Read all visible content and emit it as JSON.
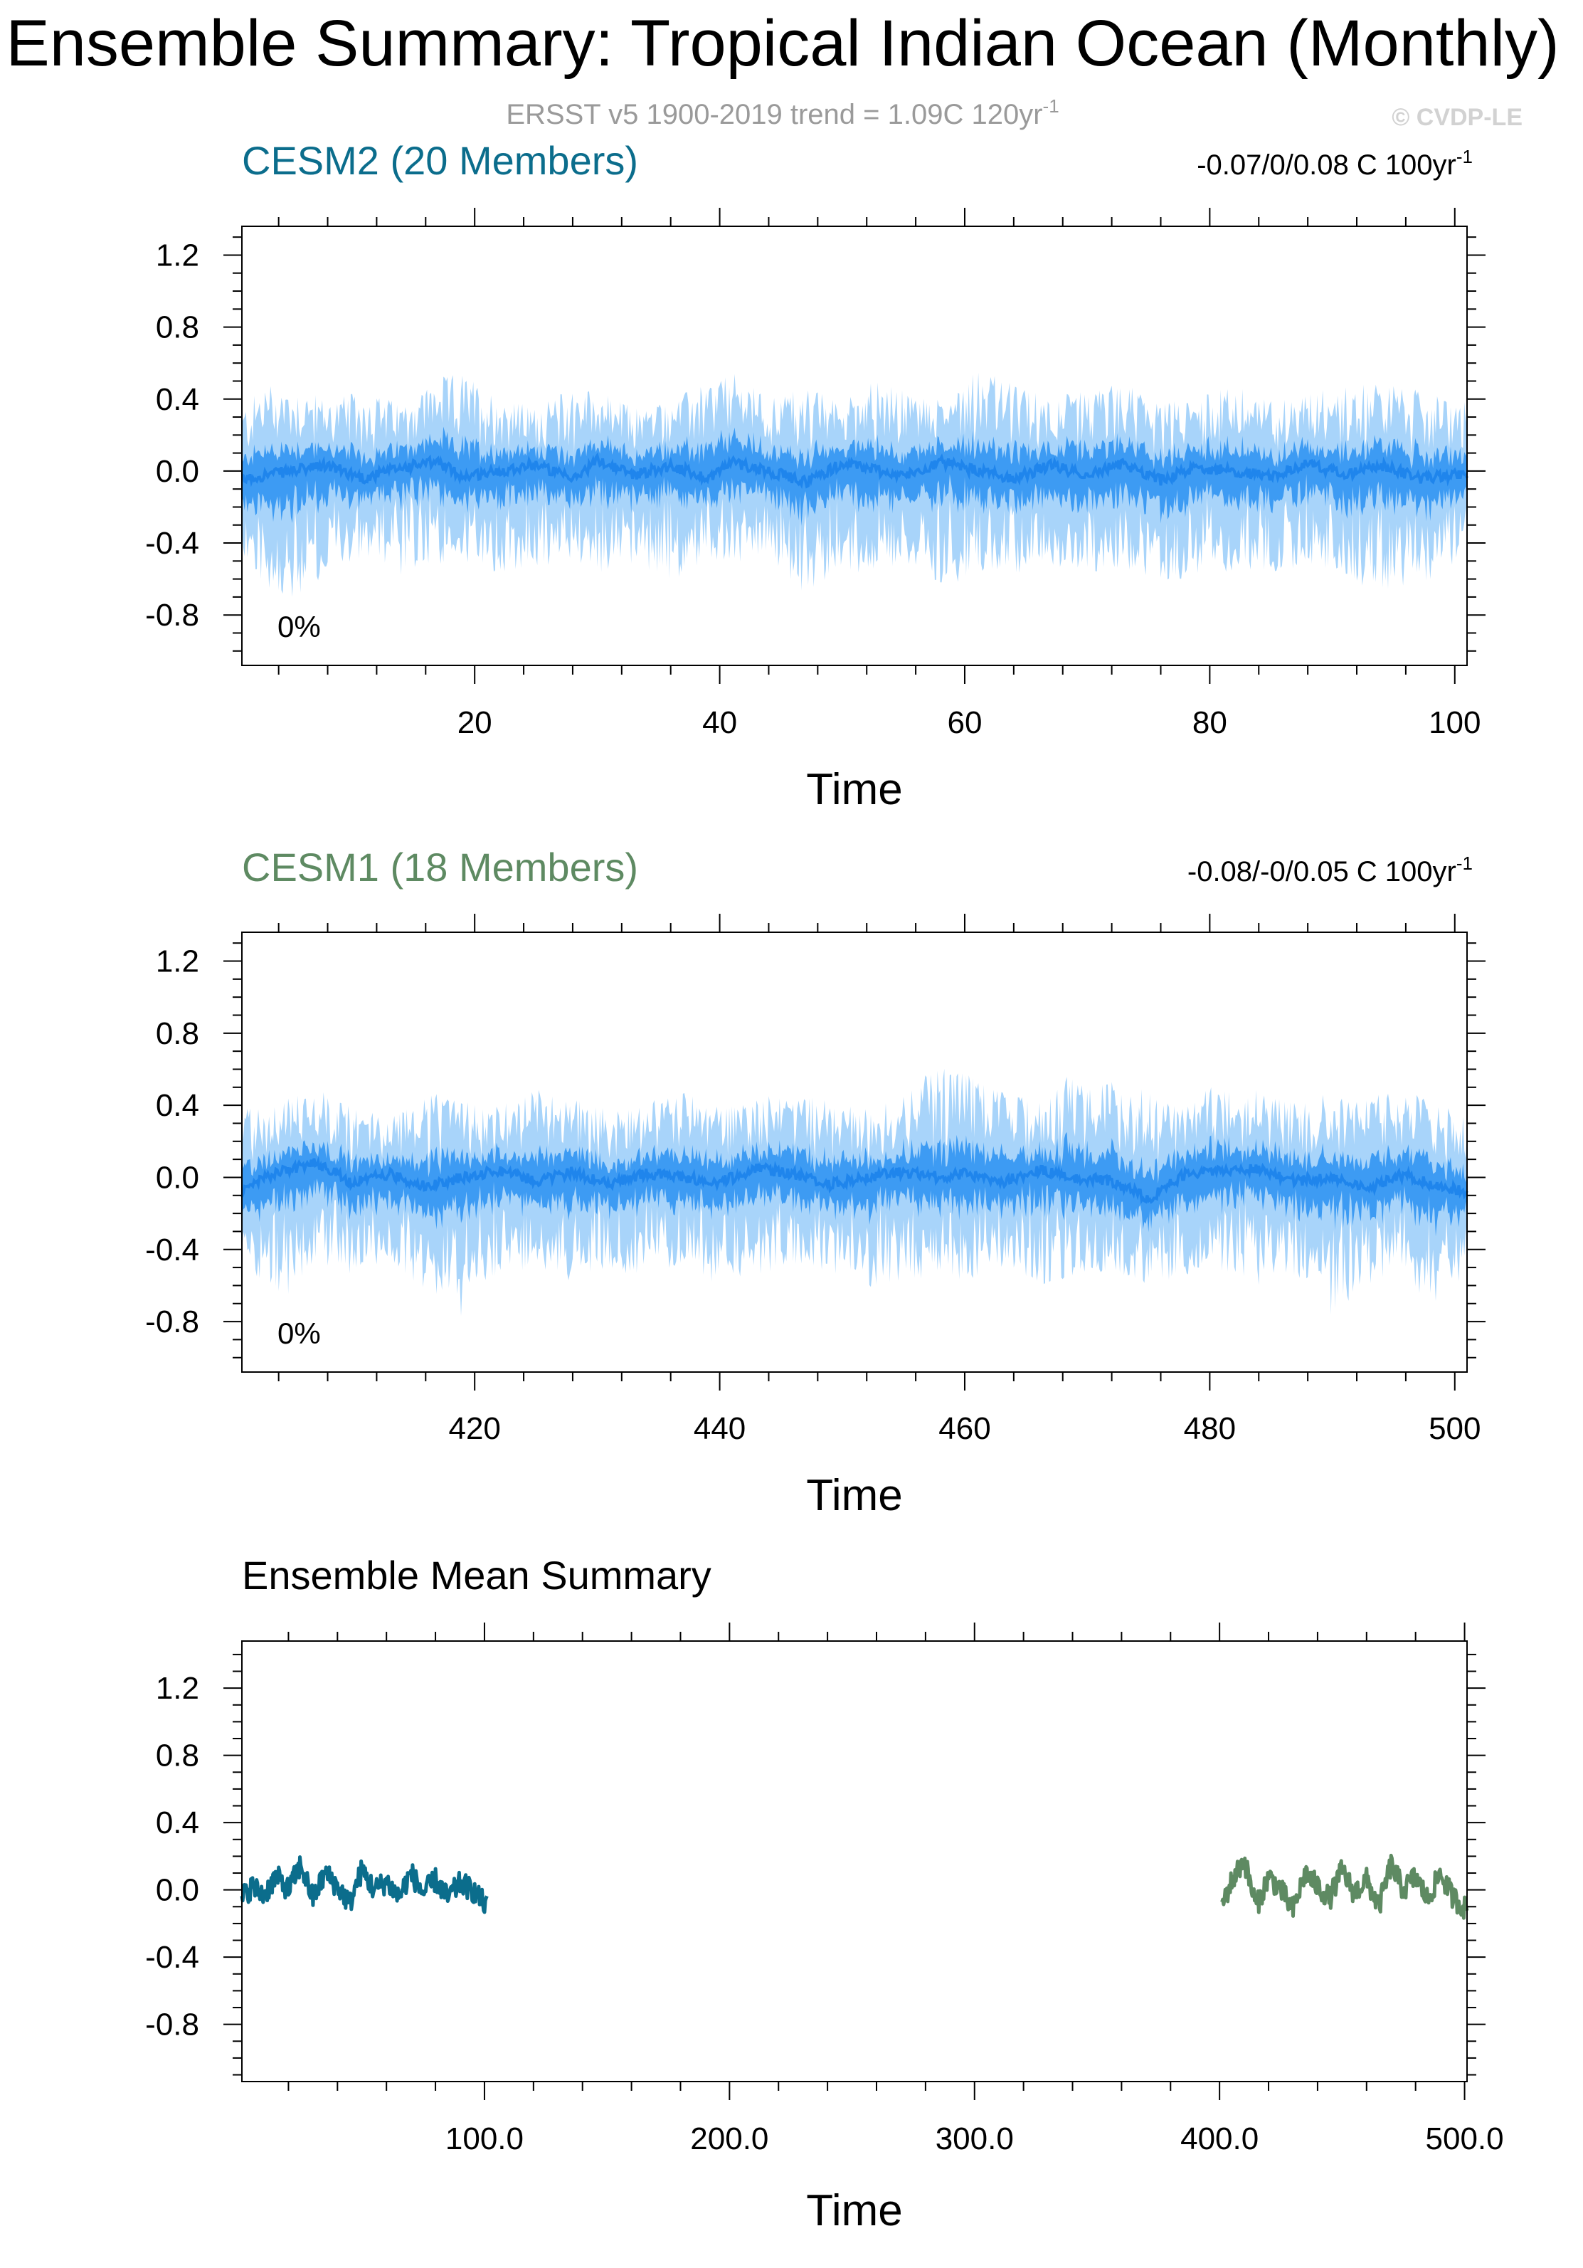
{
  "title": "Ensemble Summary: Tropical Indian Ocean (Monthly)",
  "subtitle": "ERSST v5 1900-2019 trend = 1.09C 120yr",
  "subtitle_sup": "-1",
  "credit": "© CVDP-LE",
  "chart_data": [
    {
      "type": "area",
      "title": "CESM2 (20 Members)",
      "title_color": "#0b6d8c",
      "trend_text": "-0.07/0/0.08 C 100yr",
      "trend_sup": "-1",
      "percent_label": "0%",
      "xlabel": "Time",
      "xlim": [
        1,
        101
      ],
      "xticks": [
        20,
        40,
        60,
        80,
        100
      ],
      "xtick_labels": [
        "20",
        "40",
        "60",
        "80",
        "100"
      ],
      "ylim": [
        -1.08,
        1.36
      ],
      "yticks": [
        1.2,
        0.8,
        0.4,
        0.0,
        -0.4,
        -0.8
      ],
      "ytick_labels": [
        "1.2",
        "0.8",
        "0.4",
        "0.0",
        "-0.4",
        "-0.8"
      ],
      "band_colors": {
        "outer": "#a8d4fa",
        "inner": "#3d9bf3",
        "mean": "#1f85ec"
      },
      "series": [
        {
          "name": "member spread max",
          "x": [
            1,
            3,
            5,
            8,
            11,
            14,
            17,
            19,
            22,
            25,
            28,
            30,
            33,
            36,
            39,
            41,
            44,
            47,
            50,
            52,
            55,
            58,
            61,
            64,
            67,
            70,
            73,
            76,
            79,
            82,
            85,
            88,
            91,
            94,
            97,
            101
          ],
          "values": [
            0.35,
            0.5,
            0.48,
            0.4,
            0.45,
            0.38,
            0.52,
            0.55,
            0.42,
            0.35,
            0.48,
            0.45,
            0.36,
            0.4,
            0.5,
            0.55,
            0.42,
            0.48,
            0.38,
            0.52,
            0.45,
            0.4,
            0.6,
            0.48,
            0.42,
            0.45,
            0.5,
            0.38,
            0.42,
            0.48,
            0.4,
            0.45,
            0.48,
            0.5,
            0.45,
            0.38
          ]
        },
        {
          "name": "member spread min",
          "x": [
            1,
            3,
            5,
            8,
            11,
            14,
            17,
            19,
            22,
            25,
            28,
            30,
            33,
            36,
            39,
            41,
            44,
            47,
            50,
            52,
            55,
            58,
            61,
            64,
            67,
            70,
            73,
            76,
            79,
            82,
            85,
            88,
            91,
            94,
            97,
            101
          ],
          "values": [
            -0.5,
            -0.65,
            -0.78,
            -0.55,
            -0.48,
            -0.6,
            -0.52,
            -0.5,
            -0.6,
            -0.55,
            -0.5,
            -0.58,
            -0.52,
            -0.62,
            -0.5,
            -0.55,
            -0.48,
            -0.7,
            -0.55,
            -0.6,
            -0.5,
            -0.68,
            -0.55,
            -0.58,
            -0.52,
            -0.6,
            -0.55,
            -0.62,
            -0.6,
            -0.55,
            -0.58,
            -0.52,
            -0.6,
            -0.68,
            -0.62,
            -0.55
          ]
        },
        {
          "name": "ensemble mean",
          "x": [
            1,
            3,
            5,
            8,
            11,
            14,
            17,
            19,
            22,
            25,
            28,
            30,
            33,
            36,
            39,
            41,
            44,
            47,
            50,
            52,
            55,
            58,
            61,
            64,
            67,
            70,
            73,
            76,
            79,
            82,
            85,
            88,
            91,
            94,
            97,
            101
          ],
          "values": [
            -0.05,
            -0.02,
            0.0,
            0.03,
            -0.04,
            0.02,
            0.05,
            -0.03,
            0.0,
            0.04,
            -0.05,
            0.06,
            -0.02,
            0.03,
            -0.04,
            0.05,
            0.0,
            -0.06,
            0.04,
            0.02,
            -0.03,
            0.05,
            0.0,
            -0.04,
            0.03,
            -0.02,
            0.04,
            -0.05,
            0.02,
            0.0,
            -0.03,
            0.04,
            -0.02,
            0.03,
            -0.04,
            -0.02
          ]
        }
      ]
    },
    {
      "type": "area",
      "title": "CESM1 (18 Members)",
      "title_color": "#5e8a62",
      "trend_text": "-0.08/-0/0.05 C 100yr",
      "trend_sup": "-1",
      "percent_label": "0%",
      "xlabel": "Time",
      "xlim": [
        401,
        501
      ],
      "xticks": [
        420,
        440,
        460,
        480,
        500
      ],
      "xtick_labels": [
        "420",
        "440",
        "460",
        "480",
        "500"
      ],
      "ylim": [
        -1.08,
        1.36
      ],
      "yticks": [
        1.2,
        0.8,
        0.4,
        0.0,
        -0.4,
        -0.8
      ],
      "ytick_labels": [
        "1.2",
        "0.8",
        "0.4",
        "0.0",
        "-0.4",
        "-0.8"
      ],
      "band_colors": {
        "outer": "#a8d4fa",
        "inner": "#3d9bf3",
        "mean": "#1f85ec"
      },
      "series": [
        {
          "name": "member spread max",
          "x": [
            401,
            403,
            405,
            407,
            410,
            413,
            416,
            419,
            422,
            425,
            428,
            431,
            434,
            437,
            440,
            443,
            446,
            449,
            452,
            455,
            458,
            460,
            463,
            466,
            469,
            472,
            475,
            478,
            481,
            484,
            487,
            490,
            493,
            496,
            498,
            501
          ],
          "values": [
            0.42,
            0.38,
            0.45,
            0.5,
            0.4,
            0.35,
            0.48,
            0.42,
            0.4,
            0.5,
            0.45,
            0.38,
            0.42,
            0.48,
            0.4,
            0.45,
            0.5,
            0.42,
            0.38,
            0.45,
            0.65,
            0.6,
            0.48,
            0.42,
            0.6,
            0.55,
            0.48,
            0.4,
            0.55,
            0.5,
            0.42,
            0.48,
            0.45,
            0.5,
            0.42,
            0.35
          ]
        },
        {
          "name": "member spread min",
          "x": [
            401,
            403,
            405,
            407,
            410,
            413,
            416,
            419,
            422,
            425,
            428,
            431,
            434,
            437,
            440,
            443,
            446,
            449,
            452,
            455,
            458,
            460,
            463,
            466,
            469,
            472,
            475,
            478,
            481,
            484,
            487,
            490,
            493,
            496,
            498,
            501
          ],
          "values": [
            -0.48,
            -0.6,
            -0.68,
            -0.5,
            -0.55,
            -0.48,
            -0.62,
            -0.78,
            -0.55,
            -0.5,
            -0.6,
            -0.52,
            -0.55,
            -0.5,
            -0.6,
            -0.55,
            -0.5,
            -0.52,
            -0.62,
            -0.58,
            -0.55,
            -0.58,
            -0.5,
            -0.62,
            -0.55,
            -0.52,
            -0.6,
            -0.55,
            -0.52,
            -0.6,
            -0.55,
            -0.78,
            -0.6,
            -0.55,
            -0.72,
            -0.6
          ]
        },
        {
          "name": "ensemble mean",
          "x": [
            401,
            403,
            405,
            407,
            410,
            413,
            416,
            419,
            422,
            425,
            428,
            431,
            434,
            437,
            440,
            443,
            446,
            449,
            452,
            455,
            458,
            460,
            463,
            466,
            469,
            472,
            475,
            478,
            481,
            484,
            487,
            490,
            493,
            496,
            498,
            501
          ],
          "values": [
            -0.08,
            0.0,
            0.05,
            0.08,
            -0.03,
            0.02,
            -0.05,
            0.0,
            0.04,
            -0.02,
            0.03,
            -0.04,
            0.02,
            0.0,
            -0.03,
            0.05,
            0.02,
            -0.04,
            0.0,
            0.03,
            0.0,
            0.02,
            -0.03,
            0.04,
            0.0,
            -0.02,
            -0.12,
            0.02,
            0.04,
            0.05,
            -0.02,
            0.0,
            -0.06,
            0.02,
            -0.04,
            -0.08
          ]
        }
      ]
    },
    {
      "type": "line",
      "title": "Ensemble Mean Summary",
      "title_color": "#000000",
      "xlabel": "Time",
      "xlim": [
        1,
        501
      ],
      "xticks": [
        100,
        200,
        300,
        400,
        500
      ],
      "xtick_labels": [
        "100.0",
        "200.0",
        "300.0",
        "400.0",
        "500.0"
      ],
      "ylim": [
        -1.14,
        1.48
      ],
      "yticks": [
        1.2,
        0.8,
        0.4,
        0.0,
        -0.4,
        -0.8
      ],
      "ytick_labels": [
        "1.2",
        "0.8",
        "0.4",
        "0.0",
        "-0.4",
        "-0.8"
      ],
      "series": [
        {
          "name": "CESM2",
          "color": "#0b6d8c",
          "x": [
            1,
            5,
            10,
            15,
            20,
            25,
            30,
            35,
            40,
            45,
            50,
            55,
            60,
            65,
            70,
            75,
            80,
            85,
            90,
            95,
            101
          ],
          "values": [
            -0.05,
            0.02,
            -0.03,
            0.08,
            0.0,
            0.15,
            -0.05,
            0.1,
            0.02,
            -0.08,
            0.12,
            0.0,
            0.05,
            -0.04,
            0.1,
            -0.02,
            0.06,
            -0.05,
            0.04,
            0.0,
            -0.1
          ]
        },
        {
          "name": "CESM1",
          "color": "#5e8a62",
          "x": [
            401,
            405,
            410,
            415,
            420,
            425,
            430,
            435,
            440,
            445,
            450,
            455,
            460,
            465,
            470,
            475,
            480,
            485,
            490,
            495,
            501
          ],
          "values": [
            -0.08,
            0.05,
            0.18,
            -0.1,
            0.08,
            0.0,
            -0.12,
            0.1,
            0.02,
            -0.05,
            0.12,
            -0.02,
            0.06,
            -0.1,
            0.15,
            0.0,
            0.08,
            -0.06,
            0.1,
            -0.04,
            -0.12
          ]
        }
      ]
    }
  ]
}
